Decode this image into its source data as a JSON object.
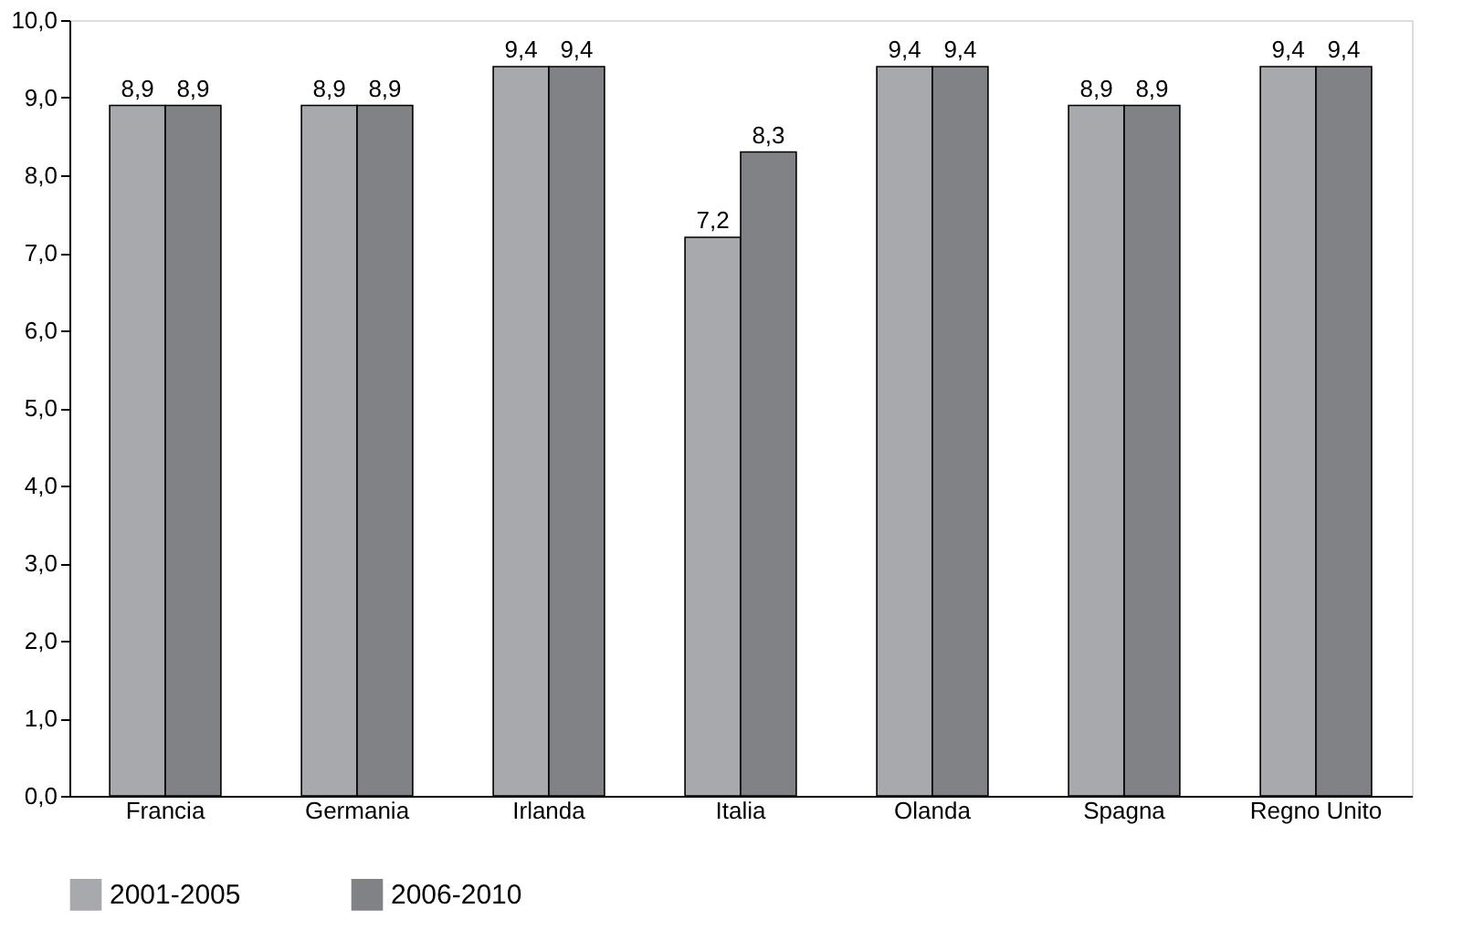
{
  "chart_data": {
    "type": "bar",
    "categories": [
      "Francia",
      "Germania",
      "Irlanda",
      "Italia",
      "Olanda",
      "Spagna",
      "Regno Unito"
    ],
    "series": [
      {
        "name": "2001-2005",
        "color": "#a7a9ac",
        "values": [
          8.9,
          8.9,
          9.4,
          7.2,
          9.4,
          8.9,
          9.4
        ],
        "value_labels": [
          "8,9",
          "8,9",
          "9,4",
          "7,2",
          "9,4",
          "8,9",
          "9,4"
        ]
      },
      {
        "name": "2006-2010",
        "color": "#808285",
        "values": [
          8.9,
          8.9,
          9.4,
          8.3,
          9.4,
          8.9,
          9.4
        ],
        "value_labels": [
          "8,9",
          "8,9",
          "9,4",
          "8,3",
          "9,4",
          "8,9",
          "9,4"
        ]
      }
    ],
    "ylim": [
      0,
      10
    ],
    "yticks": [
      {
        "value": 0,
        "label": "0,0"
      },
      {
        "value": 1,
        "label": "1,0"
      },
      {
        "value": 2,
        "label": "2,0"
      },
      {
        "value": 3,
        "label": "3,0"
      },
      {
        "value": 4,
        "label": "4,0"
      },
      {
        "value": 5,
        "label": "5,0"
      },
      {
        "value": 6,
        "label": "6,0"
      },
      {
        "value": 7,
        "label": "7,0"
      },
      {
        "value": 8,
        "label": "8,0"
      },
      {
        "value": 9,
        "label": "9,0"
      },
      {
        "value": 10,
        "label": "10,0"
      }
    ],
    "grid": false,
    "legend": "bottom"
  }
}
